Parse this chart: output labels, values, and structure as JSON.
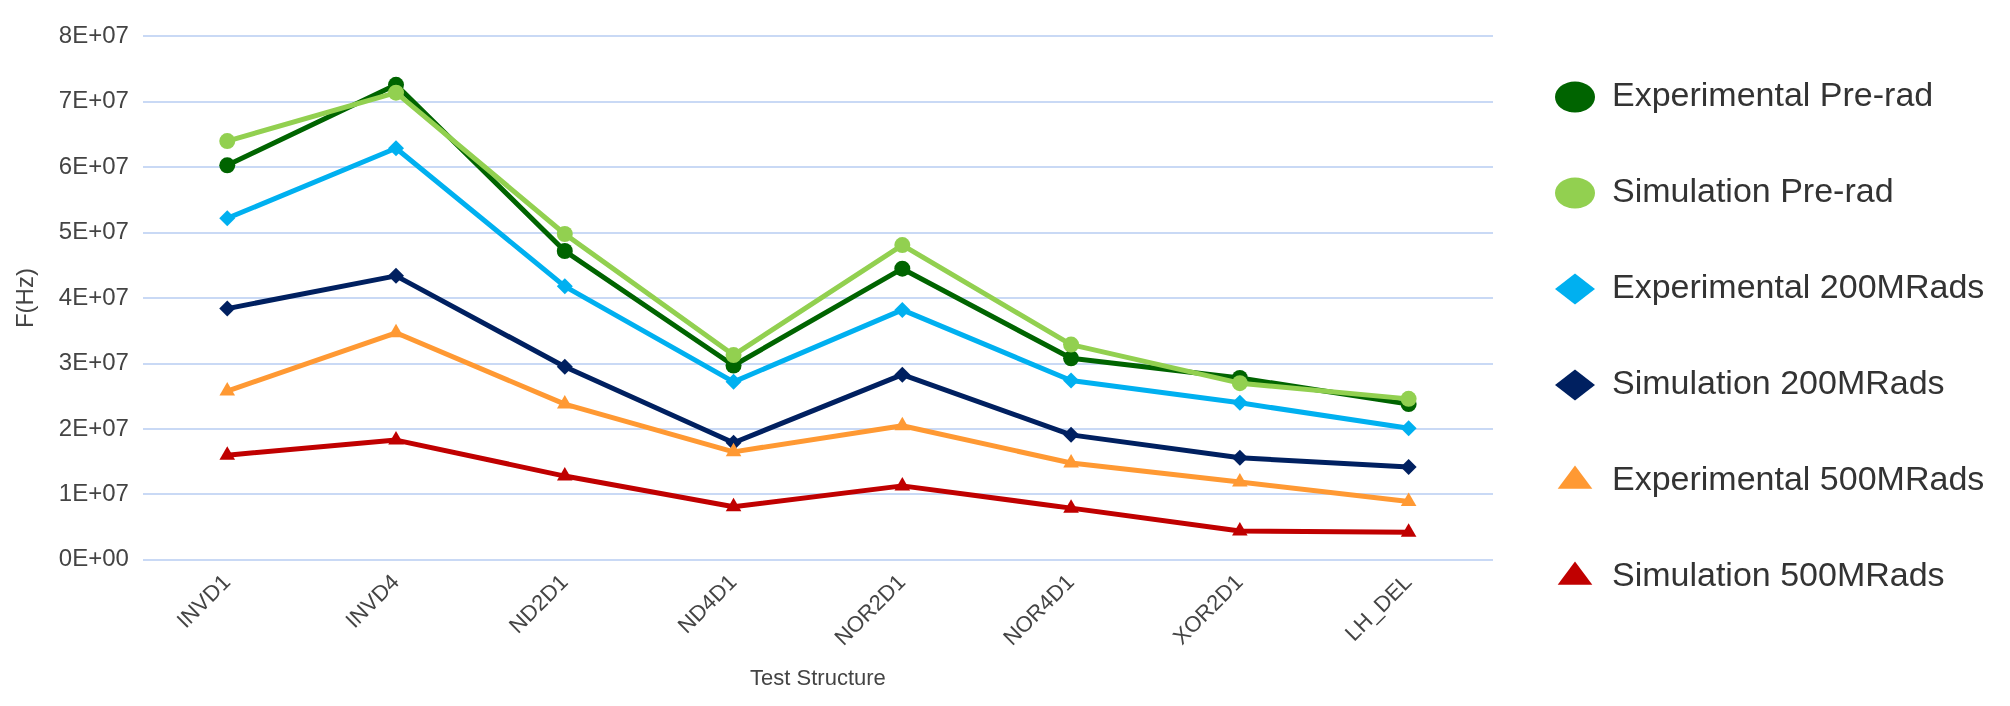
{
  "chart_data": {
    "type": "line",
    "xlabel": "Test Structure",
    "ylabel": "F(Hz)",
    "categories": [
      "INVD1",
      "INVD4",
      "ND2D1",
      "ND4D1",
      "NOR2D1",
      "NOR4D1",
      "XOR2D1",
      "LH_DEL"
    ],
    "ylim": [
      0,
      80000000
    ],
    "yticks": [
      {
        "value": 0,
        "label": "0E+00"
      },
      {
        "value": 10000000,
        "label": "1E+07"
      },
      {
        "value": 20000000,
        "label": "2E+07"
      },
      {
        "value": 30000000,
        "label": "3E+07"
      },
      {
        "value": 40000000,
        "label": "4E+07"
      },
      {
        "value": 50000000,
        "label": "5E+07"
      },
      {
        "value": 60000000,
        "label": "6E+07"
      },
      {
        "value": 70000000,
        "label": "7E+07"
      },
      {
        "value": 80000000,
        "label": "8E+07"
      }
    ],
    "grid": "y",
    "legend": "right",
    "series": [
      {
        "name": "Experimental Pre-rad",
        "color": "#006400",
        "marker": "circle",
        "values": [
          60300000,
          72600000,
          47200000,
          29700000,
          44500000,
          30800000,
          27800000,
          23800000
        ]
      },
      {
        "name": "Simulation Pre-rad",
        "color": "#92d050",
        "marker": "circle",
        "values": [
          64000000,
          71400000,
          49800000,
          31300000,
          48100000,
          32900000,
          27000000,
          24600000
        ]
      },
      {
        "name": "Experimental 200MRads",
        "color": "#00b0f0",
        "marker": "diamond",
        "values": [
          52200000,
          62900000,
          41800000,
          27200000,
          38200000,
          27400000,
          24000000,
          20100000
        ]
      },
      {
        "name": "Simulation 200MRads",
        "color": "#002060",
        "marker": "diamond",
        "values": [
          38400000,
          43400000,
          29500000,
          17900000,
          28300000,
          19100000,
          15600000,
          14200000
        ]
      },
      {
        "name": "Experimental 500MRads",
        "color": "#ff9933",
        "marker": "triangle",
        "values": [
          25800000,
          34700000,
          23800000,
          16500000,
          20500000,
          14800000,
          11900000,
          8900000
        ]
      },
      {
        "name": "Simulation 500MRads",
        "color": "#c00000",
        "marker": "triangle",
        "values": [
          16000000,
          18300000,
          12800000,
          8100000,
          11300000,
          7900000,
          4400000,
          4200000
        ]
      }
    ]
  }
}
